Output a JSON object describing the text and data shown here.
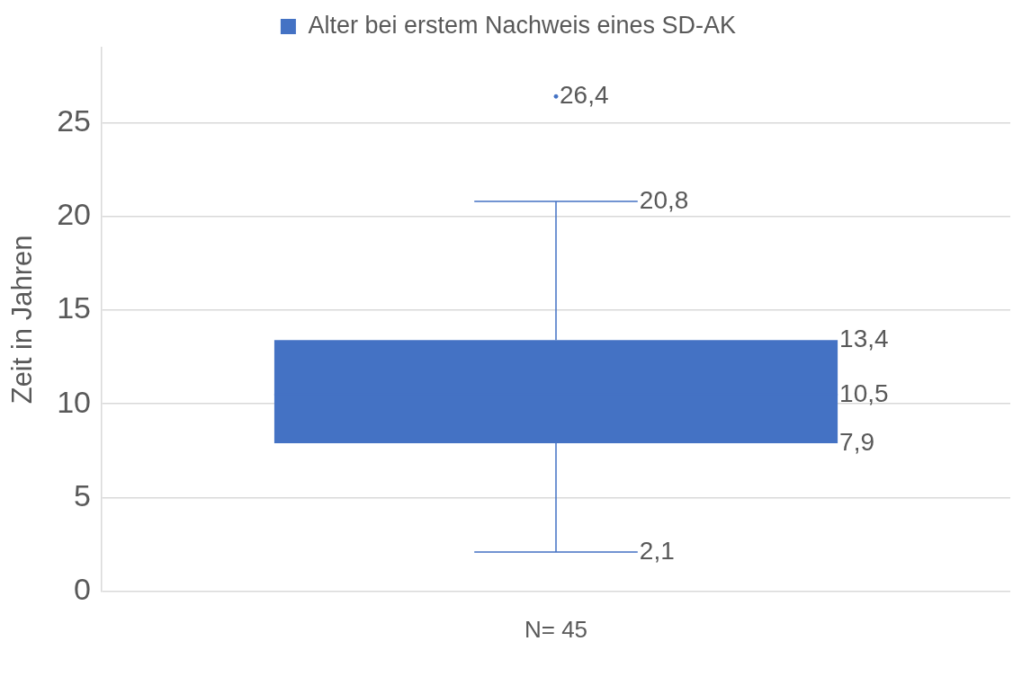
{
  "chart_data": {
    "type": "box",
    "categories": [
      "N= 45"
    ],
    "series": [
      {
        "name": "Alter bei erstem Nachweis eines SD-AK",
        "color": "#4472c4",
        "boxes": [
          {
            "low": 2.1,
            "q1": 7.9,
            "median": 10.5,
            "q3": 13.4,
            "high": 20.8,
            "outliers": [
              26.4
            ]
          }
        ]
      }
    ],
    "ylabel": "Zeit in Jahren",
    "ylim": [
      0,
      29
    ],
    "yticks": [
      0,
      5,
      10,
      15,
      20,
      25
    ],
    "grid": "y",
    "legend": "top",
    "annotations": [
      "26,4",
      "20,8",
      "13,4",
      "10,5",
      "7,9",
      "2,1"
    ]
  }
}
